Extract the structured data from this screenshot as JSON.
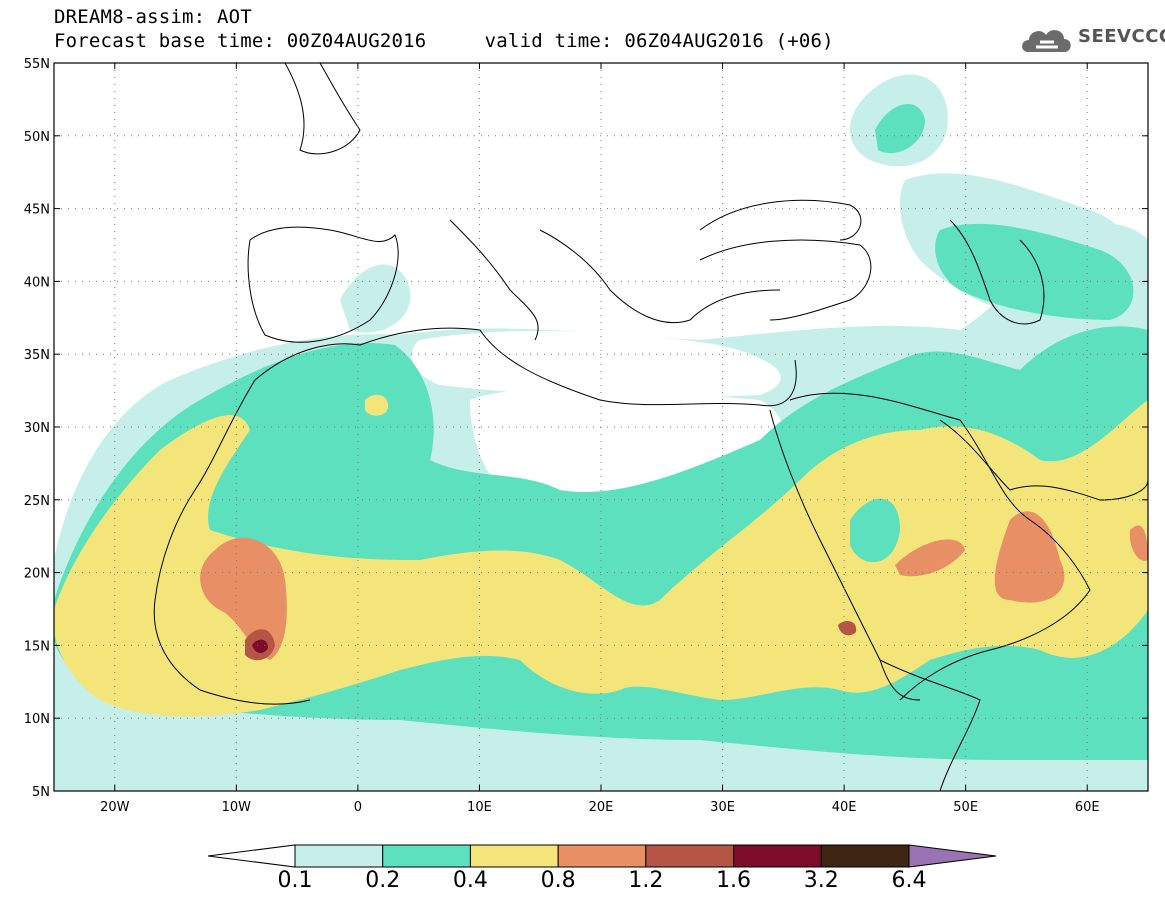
{
  "title": {
    "line1": "DREAM8-assim: AOT",
    "base_time": "Forecast base time: 00Z04AUG2016",
    "valid_time": "valid time: 06Z04AUG2016 (+06)"
  },
  "logo": {
    "text": "SEEVCCC",
    "icon": "cloud-icon"
  },
  "map": {
    "lon_range": [
      -25,
      65
    ],
    "lat_range": [
      5,
      55
    ],
    "lat_ticks": [
      {
        "value": 55,
        "label": "55N"
      },
      {
        "value": 50,
        "label": "50N"
      },
      {
        "value": 45,
        "label": "45N"
      },
      {
        "value": 40,
        "label": "40N"
      },
      {
        "value": 35,
        "label": "35N"
      },
      {
        "value": 30,
        "label": "30N"
      },
      {
        "value": 25,
        "label": "25N"
      },
      {
        "value": 20,
        "label": "20N"
      },
      {
        "value": 15,
        "label": "15N"
      },
      {
        "value": 10,
        "label": "10N"
      },
      {
        "value": 5,
        "label": "5N"
      }
    ],
    "lon_ticks": [
      {
        "value": -20,
        "label": "20W"
      },
      {
        "value": -10,
        "label": "10W"
      },
      {
        "value": 0,
        "label": "0"
      },
      {
        "value": 10,
        "label": "10E"
      },
      {
        "value": 20,
        "label": "20E"
      },
      {
        "value": 30,
        "label": "30E"
      },
      {
        "value": 40,
        "label": "40E"
      },
      {
        "value": 50,
        "label": "50E"
      },
      {
        "value": 60,
        "label": "60E"
      }
    ],
    "gridlines": "dotted"
  },
  "colorbar": {
    "labels": [
      "0.1",
      "0.2",
      "0.4",
      "0.8",
      "1.2",
      "1.6",
      "3.2",
      "6.4"
    ],
    "colors": [
      "#ffffff",
      "#c5efe8",
      "#5ce0be",
      "#f4e57a",
      "#e88f66",
      "#b55545",
      "#7d0b2a",
      "#3d2512",
      "#9a73b5"
    ]
  }
}
